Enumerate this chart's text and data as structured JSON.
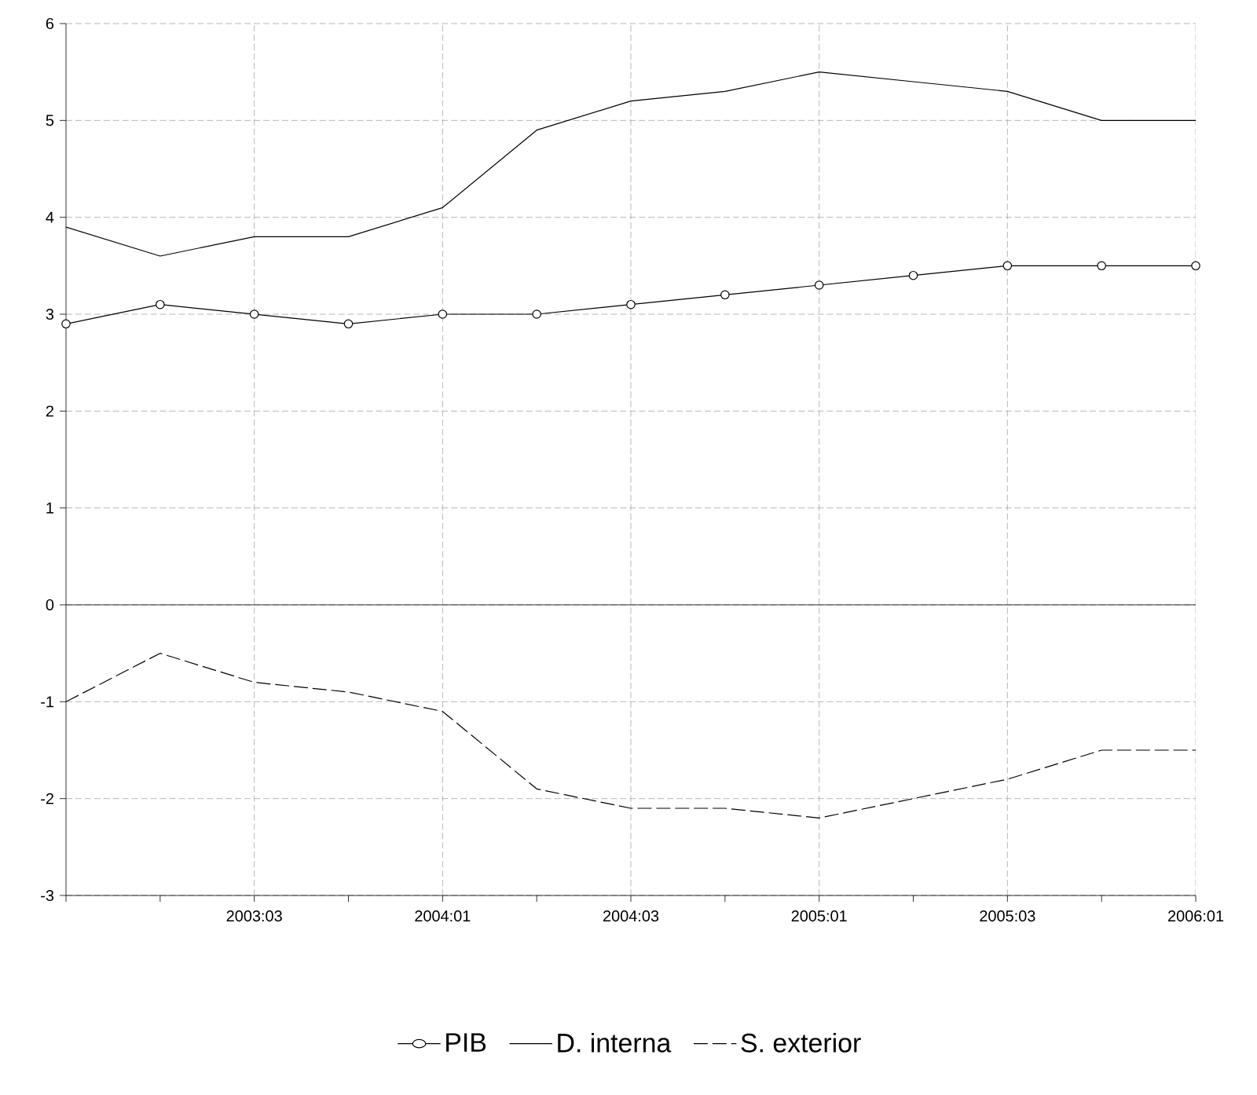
{
  "chart_data": {
    "type": "line",
    "categories": [
      null,
      null,
      "2003:03",
      null,
      "2004:01",
      null,
      "2004:03",
      null,
      "2005:01",
      null,
      "2005:03",
      null,
      "2006:01"
    ],
    "series": [
      {
        "name": "PIB",
        "color": "#000000",
        "marker": "circle",
        "line_style": "solid",
        "values": [
          2.9,
          3.1,
          3.0,
          2.9,
          3.0,
          3.0,
          3.1,
          3.2,
          3.3,
          3.4,
          3.5,
          3.5,
          3.5
        ]
      },
      {
        "name": "D. interna",
        "color": "#000000",
        "marker": "none",
        "line_style": "solid",
        "values": [
          3.9,
          3.6,
          3.8,
          3.8,
          4.1,
          4.9,
          5.2,
          5.3,
          5.5,
          5.4,
          5.3,
          5.0,
          5.0
        ]
      },
      {
        "name": "S. exterior",
        "color": "#000000",
        "marker": "none",
        "line_style": "dashed",
        "values": [
          -1.0,
          -0.5,
          -0.8,
          -0.9,
          -1.1,
          -1.9,
          -2.1,
          -2.1,
          -2.2,
          -2.0,
          -1.8,
          -1.5,
          -1.5
        ]
      }
    ],
    "ylim": [
      -3,
      6
    ],
    "yticks": [
      -3,
      -2,
      -1,
      0,
      1,
      2,
      3,
      4,
      5,
      6
    ],
    "grid": true,
    "legend": "bottom",
    "ref_lines": [
      {
        "axis": "y",
        "value": 0,
        "color": "#000000",
        "line_style": "solid"
      }
    ]
  }
}
